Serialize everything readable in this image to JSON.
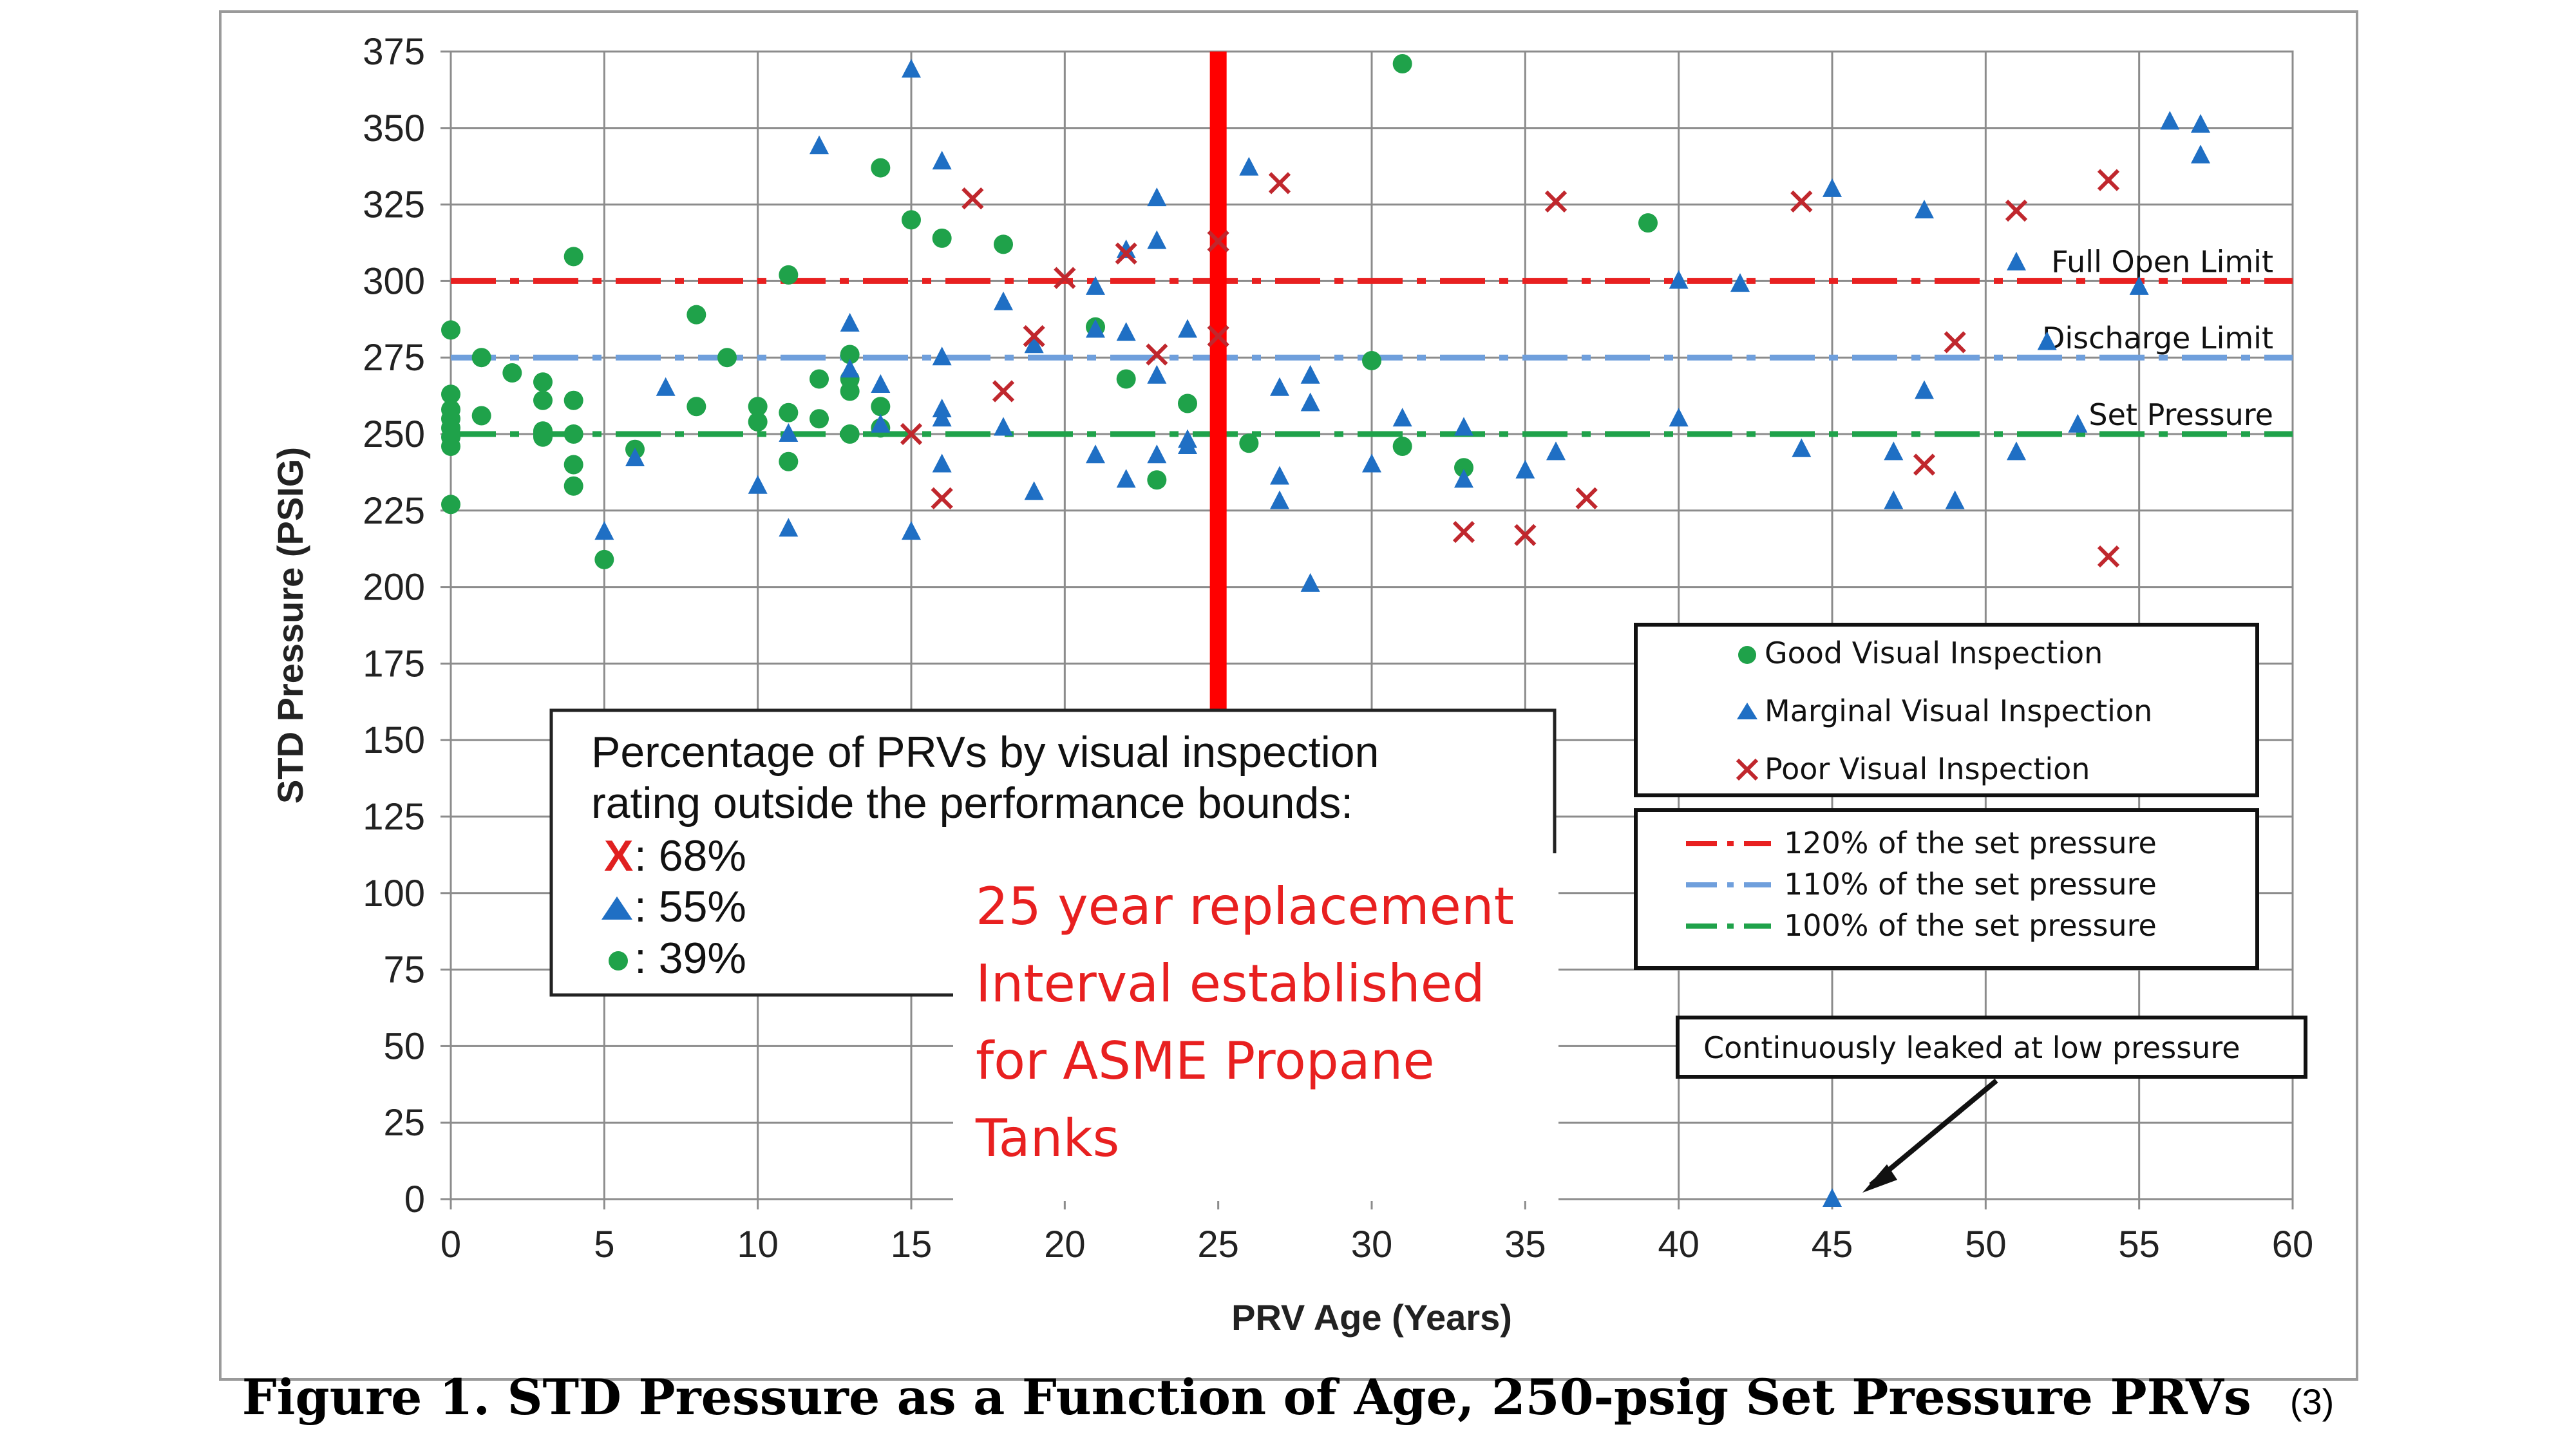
{
  "figure_caption": "Figure 1. STD Pressure as a Function of Age, 250-psig Set Pressure PRVs",
  "reference_mark": "(3)",
  "chart_data": {
    "type": "scatter",
    "xlabel": "PRV Age (Years)",
    "ylabel": "STD Pressure (PSIG)",
    "xlim": [
      0,
      60
    ],
    "ylim": [
      0,
      375
    ],
    "xticks": [
      0,
      5,
      10,
      15,
      20,
      25,
      30,
      35,
      40,
      45,
      50,
      55,
      60
    ],
    "yticks": [
      0,
      25,
      50,
      75,
      100,
      125,
      150,
      175,
      200,
      225,
      250,
      275,
      300,
      325,
      350,
      375
    ],
    "grid": true,
    "colors": {
      "good": "#1fa24a",
      "marginal": "#1f6fc4",
      "poor": "#c0272d",
      "line120": "#e82020",
      "line110": "#6f9fdc",
      "line100": "#1fa24a",
      "replacement": "#ff0000"
    },
    "series": [
      {
        "name": "Good Visual Inspection",
        "marker": "circle",
        "points": [
          [
            0,
            284
          ],
          [
            0,
            263
          ],
          [
            0,
            258
          ],
          [
            0,
            255
          ],
          [
            0,
            252
          ],
          [
            0,
            249
          ],
          [
            0,
            246
          ],
          [
            0,
            227
          ],
          [
            1,
            275
          ],
          [
            1,
            256
          ],
          [
            2,
            270
          ],
          [
            3,
            267
          ],
          [
            3,
            261
          ],
          [
            3,
            251
          ],
          [
            3,
            249
          ],
          [
            4,
            308
          ],
          [
            4,
            261
          ],
          [
            4,
            250
          ],
          [
            4,
            240
          ],
          [
            4,
            233
          ],
          [
            5,
            209
          ],
          [
            6,
            245
          ],
          [
            8,
            289
          ],
          [
            8,
            259
          ],
          [
            9,
            275
          ],
          [
            10,
            259
          ],
          [
            10,
            254
          ],
          [
            11,
            302
          ],
          [
            11,
            257
          ],
          [
            11,
            241
          ],
          [
            12,
            268
          ],
          [
            12,
            255
          ],
          [
            13,
            276
          ],
          [
            13,
            268
          ],
          [
            13,
            264
          ],
          [
            13,
            250
          ],
          [
            14,
            337
          ],
          [
            14,
            259
          ],
          [
            14,
            252
          ],
          [
            15,
            320
          ],
          [
            16,
            314
          ],
          [
            18,
            312
          ],
          [
            21,
            285
          ],
          [
            22,
            268
          ],
          [
            23,
            235
          ],
          [
            24,
            260
          ],
          [
            26,
            247
          ],
          [
            30,
            274
          ],
          [
            31,
            371
          ],
          [
            31,
            246
          ],
          [
            33,
            239
          ],
          [
            39,
            319
          ]
        ]
      },
      {
        "name": "Marginal Visual Inspection",
        "marker": "triangle",
        "points": [
          [
            5,
            218
          ],
          [
            6,
            242
          ],
          [
            7,
            265
          ],
          [
            10,
            233
          ],
          [
            11,
            250
          ],
          [
            11,
            219
          ],
          [
            12,
            344
          ],
          [
            13,
            286
          ],
          [
            13,
            271
          ],
          [
            14,
            266
          ],
          [
            14,
            253
          ],
          [
            15,
            369
          ],
          [
            15,
            218
          ],
          [
            16,
            339
          ],
          [
            16,
            275
          ],
          [
            16,
            258
          ],
          [
            16,
            255
          ],
          [
            16,
            240
          ],
          [
            18,
            293
          ],
          [
            18,
            252
          ],
          [
            19,
            231
          ],
          [
            19,
            279
          ],
          [
            21,
            298
          ],
          [
            21,
            284
          ],
          [
            21,
            243
          ],
          [
            22,
            310
          ],
          [
            22,
            283
          ],
          [
            22,
            235
          ],
          [
            23,
            327
          ],
          [
            23,
            313
          ],
          [
            23,
            269
          ],
          [
            23,
            243
          ],
          [
            24,
            284
          ],
          [
            24,
            248
          ],
          [
            24,
            246
          ],
          [
            26,
            337
          ],
          [
            27,
            265
          ],
          [
            27,
            236
          ],
          [
            27,
            228
          ],
          [
            28,
            269
          ],
          [
            28,
            260
          ],
          [
            28,
            201
          ],
          [
            30,
            240
          ],
          [
            31,
            255
          ],
          [
            33,
            252
          ],
          [
            33,
            235
          ],
          [
            35,
            238
          ],
          [
            36,
            244
          ],
          [
            40,
            300
          ],
          [
            40,
            255
          ],
          [
            42,
            299
          ],
          [
            44,
            245
          ],
          [
            45,
            330
          ],
          [
            45,
            0
          ],
          [
            47,
            244
          ],
          [
            47,
            228
          ],
          [
            48,
            323
          ],
          [
            48,
            264
          ],
          [
            49,
            228
          ],
          [
            51,
            306
          ],
          [
            51,
            244
          ],
          [
            52,
            280
          ],
          [
            53,
            253
          ],
          [
            55,
            298
          ],
          [
            56,
            352
          ],
          [
            57,
            351
          ],
          [
            57,
            341
          ]
        ]
      },
      {
        "name": "Poor Visual Inspection",
        "marker": "x",
        "points": [
          [
            15,
            250
          ],
          [
            16,
            229
          ],
          [
            17,
            327
          ],
          [
            18,
            264
          ],
          [
            19,
            282
          ],
          [
            20,
            301
          ],
          [
            22,
            309
          ],
          [
            23,
            276
          ],
          [
            25,
            313
          ],
          [
            25,
            282
          ],
          [
            27,
            332
          ],
          [
            33,
            218
          ],
          [
            35,
            217
          ],
          [
            36,
            326
          ],
          [
            37,
            229
          ],
          [
            44,
            326
          ],
          [
            48,
            240
          ],
          [
            49,
            280
          ],
          [
            51,
            323
          ],
          [
            54,
            333
          ],
          [
            54,
            210
          ]
        ]
      }
    ],
    "reference_lines": [
      {
        "name": "120% of the set pressure",
        "y": 300,
        "label": "Full Open Limit"
      },
      {
        "name": "110% of the set pressure",
        "y": 275,
        "label": "Discharge Limit"
      },
      {
        "name": "100% of the set pressure",
        "y": 250,
        "label": "Set Pressure"
      }
    ],
    "vertical_line": {
      "x": 25
    },
    "legend_markers": [
      "Good Visual Inspection",
      "Marginal Visual Inspection",
      "Poor Visual Inspection"
    ],
    "legend_lines": [
      "120% of the set pressure",
      "110% of the set pressure",
      "100% of the set pressure"
    ],
    "percentage_box": {
      "title_line1": "Percentage of PRVs by visual inspection",
      "title_line2": "rating outside the performance bounds:",
      "poor_marker": "X",
      "poor": ": 68%",
      "marginal": ": 55%",
      "good": ": 39%"
    },
    "replacement_note": [
      "25 year replacement",
      "Interval  established",
      "for ASME Propane",
      "Tanks"
    ],
    "leak_annotation": "Continuously leaked at low pressure",
    "leak_point": [
      45,
      0
    ]
  }
}
